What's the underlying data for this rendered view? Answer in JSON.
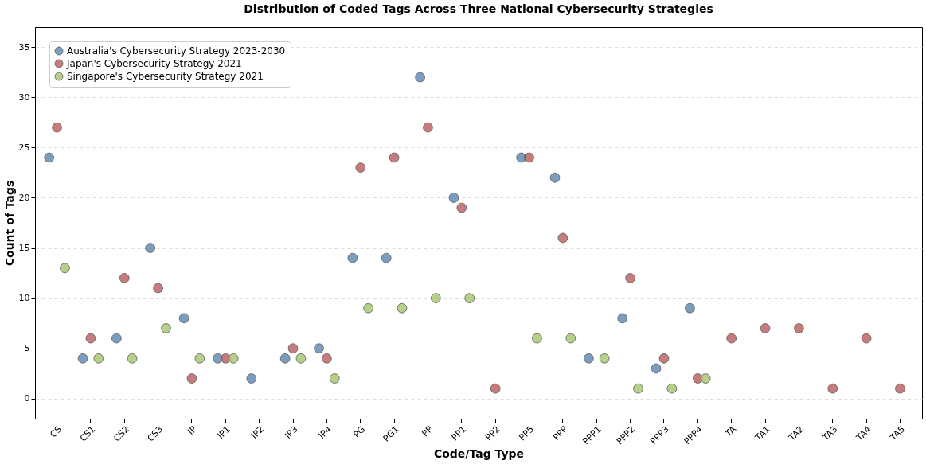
{
  "chart_data": {
    "type": "scatter",
    "title": "Distribution of Coded Tags Across Three National Cybersecurity Strategies",
    "xlabel": "Code/Tag Type",
    "ylabel": "Count of Tags",
    "categories": [
      "CS",
      "CS1",
      "CS2",
      "CS3",
      "IP",
      "IP1",
      "IP2",
      "IP3",
      "IP4",
      "PG",
      "PG1",
      "PP",
      "PP1",
      "PP2",
      "PP5",
      "PPP",
      "PPP1",
      "PPP2",
      "PPP3",
      "PPP4",
      "TA",
      "TA1",
      "TA2",
      "TA3",
      "TA4",
      "TA5"
    ],
    "series": [
      {
        "name": "Australia's Cybersecurity Strategy 2023-2030",
        "color": "#5b85b0",
        "values": [
          24,
          4,
          6,
          15,
          8,
          4,
          2,
          4,
          5,
          14,
          14,
          32,
          20,
          null,
          24,
          22,
          4,
          8,
          3,
          9,
          null,
          null,
          null,
          null,
          null,
          null
        ]
      },
      {
        "name": "Japan's Cybersecurity Strategy 2021",
        "color": "#b85c5c",
        "values": [
          27,
          6,
          12,
          11,
          2,
          4,
          null,
          5,
          4,
          23,
          24,
          27,
          19,
          1,
          24,
          16,
          null,
          12,
          4,
          2,
          6,
          7,
          7,
          1,
          6,
          1
        ]
      },
      {
        "name": "Singapore's Cybersecurity Strategy 2021",
        "color": "#a3c56b",
        "values": [
          13,
          4,
          4,
          7,
          4,
          4,
          null,
          4,
          2,
          9,
          9,
          10,
          10,
          null,
          6,
          6,
          4,
          1,
          1,
          2,
          null,
          null,
          null,
          null,
          null,
          null
        ]
      }
    ],
    "ylim": [
      -2,
      37
    ],
    "yticks": [
      0,
      5,
      10,
      15,
      20,
      25,
      30,
      35
    ],
    "grid": "y",
    "legend": "top left",
    "marker": "circle"
  }
}
